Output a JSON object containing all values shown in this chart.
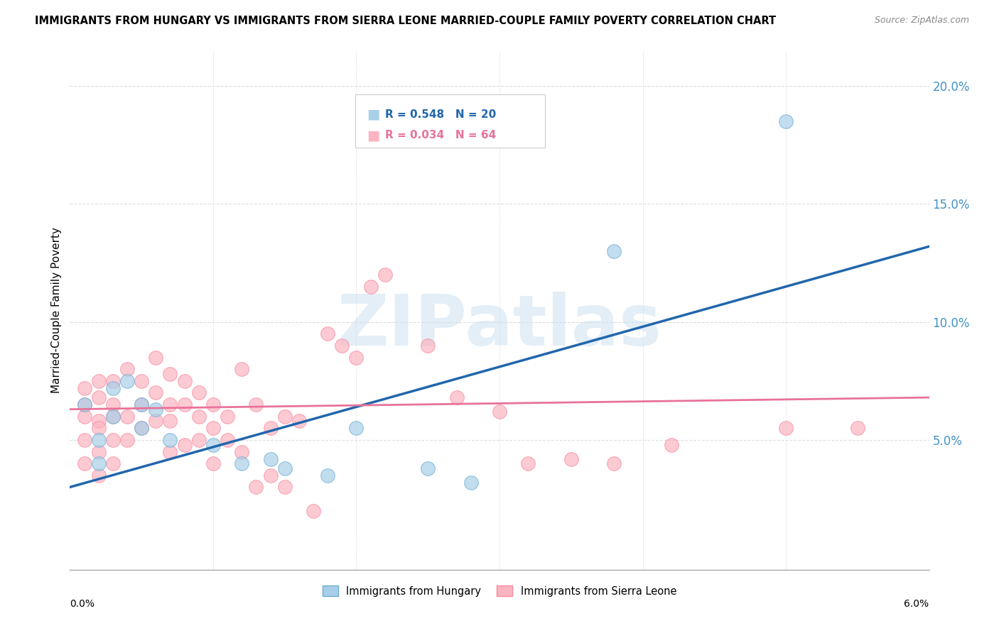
{
  "title": "IMMIGRANTS FROM HUNGARY VS IMMIGRANTS FROM SIERRA LEONE MARRIED-COUPLE FAMILY POVERTY CORRELATION CHART",
  "source": "Source: ZipAtlas.com",
  "ylabel": "Married-Couple Family Poverty",
  "xlim": [
    0.0,
    0.06
  ],
  "ylim": [
    -0.005,
    0.215
  ],
  "hungary_color": "#a8cfe8",
  "hungary_edge": "#6baed6",
  "sierra_leone_color": "#fbb4c1",
  "sierra_leone_edge": "#f88b9d",
  "hungary_line_color": "#2166ac",
  "sierra_leone_line_color": "#e8739a",
  "hungary_R": 0.548,
  "hungary_N": 20,
  "sierra_leone_R": 0.034,
  "sierra_leone_N": 64,
  "hungary_label": "Immigrants from Hungary",
  "sierra_leone_label": "Immigrants from Sierra Leone",
  "watermark": "ZIPatlas",
  "hungary_scatter_x": [
    0.001,
    0.002,
    0.002,
    0.003,
    0.003,
    0.004,
    0.005,
    0.005,
    0.006,
    0.007,
    0.01,
    0.012,
    0.014,
    0.015,
    0.018,
    0.02,
    0.025,
    0.028,
    0.038,
    0.05
  ],
  "hungary_scatter_y": [
    0.065,
    0.05,
    0.04,
    0.072,
    0.06,
    0.075,
    0.065,
    0.055,
    0.063,
    0.05,
    0.048,
    0.04,
    0.042,
    0.038,
    0.035,
    0.055,
    0.038,
    0.032,
    0.13,
    0.185
  ],
  "sierra_leone_scatter_x": [
    0.001,
    0.001,
    0.001,
    0.001,
    0.001,
    0.002,
    0.002,
    0.002,
    0.002,
    0.002,
    0.002,
    0.003,
    0.003,
    0.003,
    0.003,
    0.003,
    0.004,
    0.004,
    0.004,
    0.005,
    0.005,
    0.005,
    0.006,
    0.006,
    0.006,
    0.007,
    0.007,
    0.007,
    0.007,
    0.008,
    0.008,
    0.008,
    0.009,
    0.009,
    0.009,
    0.01,
    0.01,
    0.01,
    0.011,
    0.011,
    0.012,
    0.012,
    0.013,
    0.013,
    0.014,
    0.014,
    0.015,
    0.015,
    0.016,
    0.017,
    0.018,
    0.019,
    0.02,
    0.021,
    0.022,
    0.025,
    0.027,
    0.03,
    0.032,
    0.035,
    0.038,
    0.042,
    0.05,
    0.055
  ],
  "sierra_leone_scatter_y": [
    0.065,
    0.072,
    0.06,
    0.05,
    0.04,
    0.068,
    0.058,
    0.075,
    0.045,
    0.055,
    0.035,
    0.065,
    0.075,
    0.06,
    0.05,
    0.04,
    0.08,
    0.06,
    0.05,
    0.075,
    0.065,
    0.055,
    0.085,
    0.07,
    0.058,
    0.078,
    0.065,
    0.058,
    0.045,
    0.075,
    0.065,
    0.048,
    0.07,
    0.06,
    0.05,
    0.065,
    0.055,
    0.04,
    0.06,
    0.05,
    0.08,
    0.045,
    0.065,
    0.03,
    0.055,
    0.035,
    0.06,
    0.03,
    0.058,
    0.02,
    0.095,
    0.09,
    0.085,
    0.115,
    0.12,
    0.09,
    0.068,
    0.062,
    0.04,
    0.042,
    0.04,
    0.048,
    0.055,
    0.055
  ],
  "hungary_line_x0": 0.0,
  "hungary_line_y0": 0.03,
  "hungary_line_x1": 0.06,
  "hungary_line_y1": 0.132,
  "sierra_line_x0": 0.0,
  "sierra_line_y0": 0.063,
  "sierra_line_x1": 0.06,
  "sierra_line_y1": 0.068
}
